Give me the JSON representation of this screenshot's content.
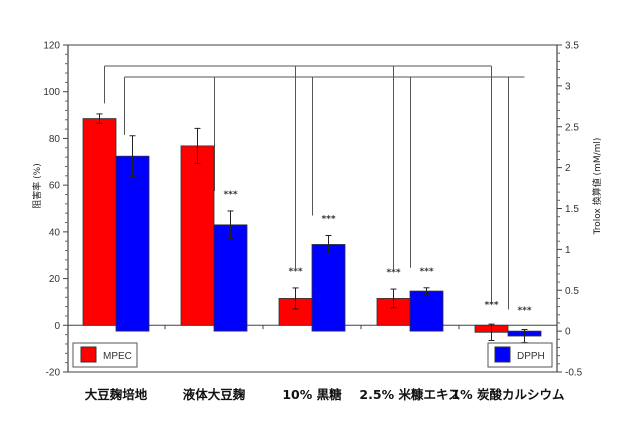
{
  "chart_data": {
    "type": "bar",
    "title": "",
    "xlabel": "",
    "ylabel": "阻害率 (%)",
    "ylabel_right": "Trolox 換算値 (mM/ml)",
    "ylim": [
      -20,
      120
    ],
    "ylim_right": [
      -0.5,
      3.5
    ],
    "yticks": [
      -20,
      0,
      20,
      40,
      60,
      80,
      100,
      120
    ],
    "yticks_right": [
      -0.5,
      0,
      0.5,
      1,
      1.5,
      2,
      2.5,
      3,
      3.5
    ],
    "categories": [
      "大豆麹培地",
      "液体大豆麹",
      "10% 黒糖",
      "2.5% 米糠エキス",
      "1% 炭酸カルシウム"
    ],
    "series": [
      {
        "name": "MPEC",
        "axis": "left",
        "color": "#ff0000",
        "values": [
          88.5,
          76.8,
          11.5,
          11.5,
          -3.0
        ],
        "error": [
          2.0,
          7.5,
          4.5,
          4.0,
          3.5
        ],
        "significance": [
          "",
          "",
          "***",
          "***",
          "***"
        ]
      },
      {
        "name": "DPPH",
        "axis": "right",
        "color": "#0000ff",
        "values": [
          2.14,
          1.3,
          1.06,
          0.49,
          -0.06
        ],
        "error": [
          0.25,
          0.17,
          0.11,
          0.04,
          0.08
        ],
        "significance": [
          "",
          "***",
          "***",
          "***",
          "***"
        ]
      }
    ],
    "legend": [
      {
        "label": "MPEC",
        "color": "#ff0000",
        "position": "bottom-left"
      },
      {
        "label": "DPPH",
        "color": "#0000ff",
        "position": "bottom-right"
      }
    ],
    "grid": false,
    "significance_marker": "***"
  }
}
